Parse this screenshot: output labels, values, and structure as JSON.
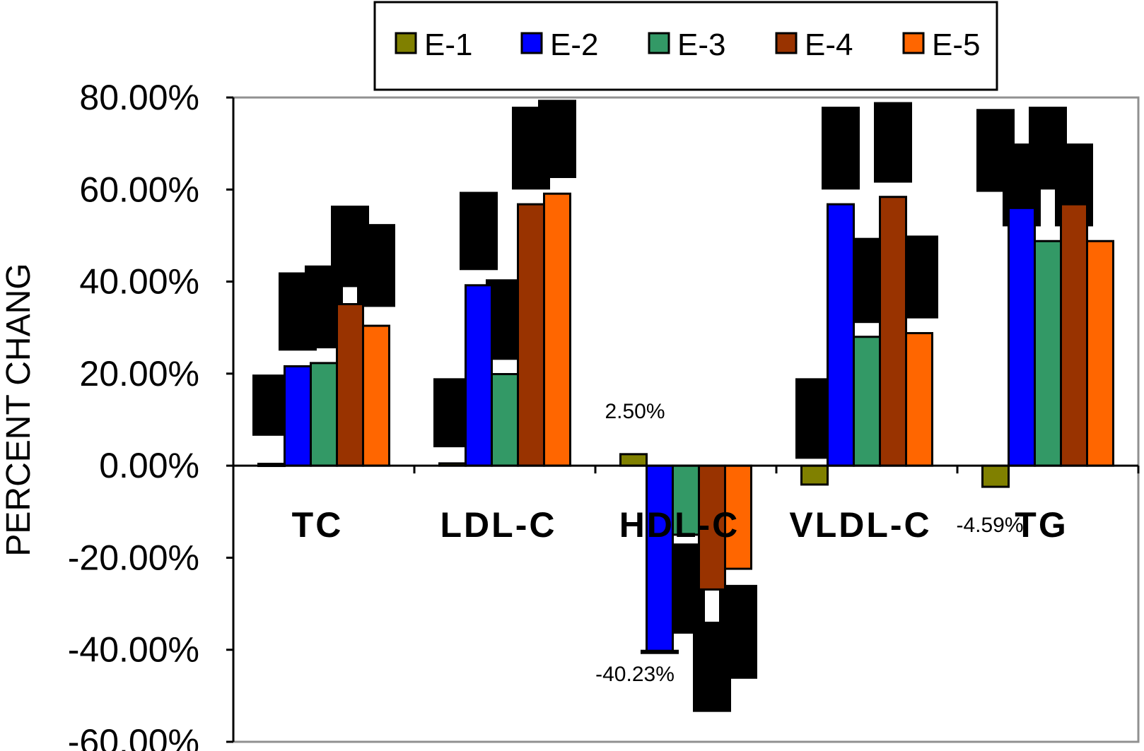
{
  "chart_data": {
    "type": "bar",
    "title": "",
    "xlabel": "",
    "ylabel": "PERCENT CHANG",
    "ylim": [
      -60,
      80
    ],
    "yticks": [
      80,
      60,
      40,
      20,
      0,
      -20,
      -40,
      -60
    ],
    "ytick_labels": [
      "80.00%",
      "60.00%",
      "40.00%",
      "20.00%",
      "0.00%",
      "-20.00%",
      "-40.00%",
      "-60.00%"
    ],
    "categories": [
      "TC",
      "LDL-C",
      "HDL-C",
      "VLDL-C",
      "TG"
    ],
    "legend_position": "top-center",
    "series": [
      {
        "name": "E-1",
        "color": "#808000",
        "values": [
          0.4,
          0.5,
          2.5,
          -4.1,
          -4.59
        ]
      },
      {
        "name": "E-2",
        "color": "#0000ff",
        "values": [
          21.6,
          39.2,
          -40.23,
          56.8,
          56.0
        ]
      },
      {
        "name": "E-3",
        "color": "#339966",
        "values": [
          22.3,
          19.9,
          -15.0,
          28.0,
          48.8
        ]
      },
      {
        "name": "E-4",
        "color": "#993300",
        "values": [
          35.1,
          56.8,
          -26.9,
          58.4,
          56.8
        ]
      },
      {
        "name": "E-5",
        "color": "#ff6600",
        "values": [
          30.4,
          59.1,
          -22.4,
          28.8,
          48.8
        ]
      }
    ],
    "error_blocks": [
      [
        [
          6.5,
          19.8
        ],
        [
          25.0,
          42.0
        ],
        [
          25.5,
          43.5
        ],
        [
          38.8,
          56.5
        ],
        [
          34.5,
          52.5
        ]
      ],
      [
        [
          4.0,
          19.0
        ],
        [
          42.5,
          59.5
        ],
        [
          23.0,
          40.5
        ],
        [
          60.0,
          78.0
        ],
        [
          62.5,
          79.5
        ]
      ],
      [
        null,
        [
          -40.0,
          -40.0
        ],
        [
          -36.5,
          -16.9
        ],
        [
          -53.5,
          -33.9
        ],
        [
          -46.3,
          -25.9
        ]
      ],
      [
        [
          1.5,
          19.0
        ],
        [
          60.0,
          78.0
        ],
        [
          31.0,
          49.5
        ],
        [
          61.5,
          79.0
        ],
        [
          32.0,
          50.0
        ]
      ],
      [
        [
          59.5,
          77.5
        ],
        [
          52.0,
          70.0
        ],
        [
          60.0,
          78.0
        ],
        [
          52.0,
          70.0
        ],
        null
      ]
    ],
    "annotations": [
      "2.50%",
      "-40.23%",
      "-4.59%"
    ]
  }
}
